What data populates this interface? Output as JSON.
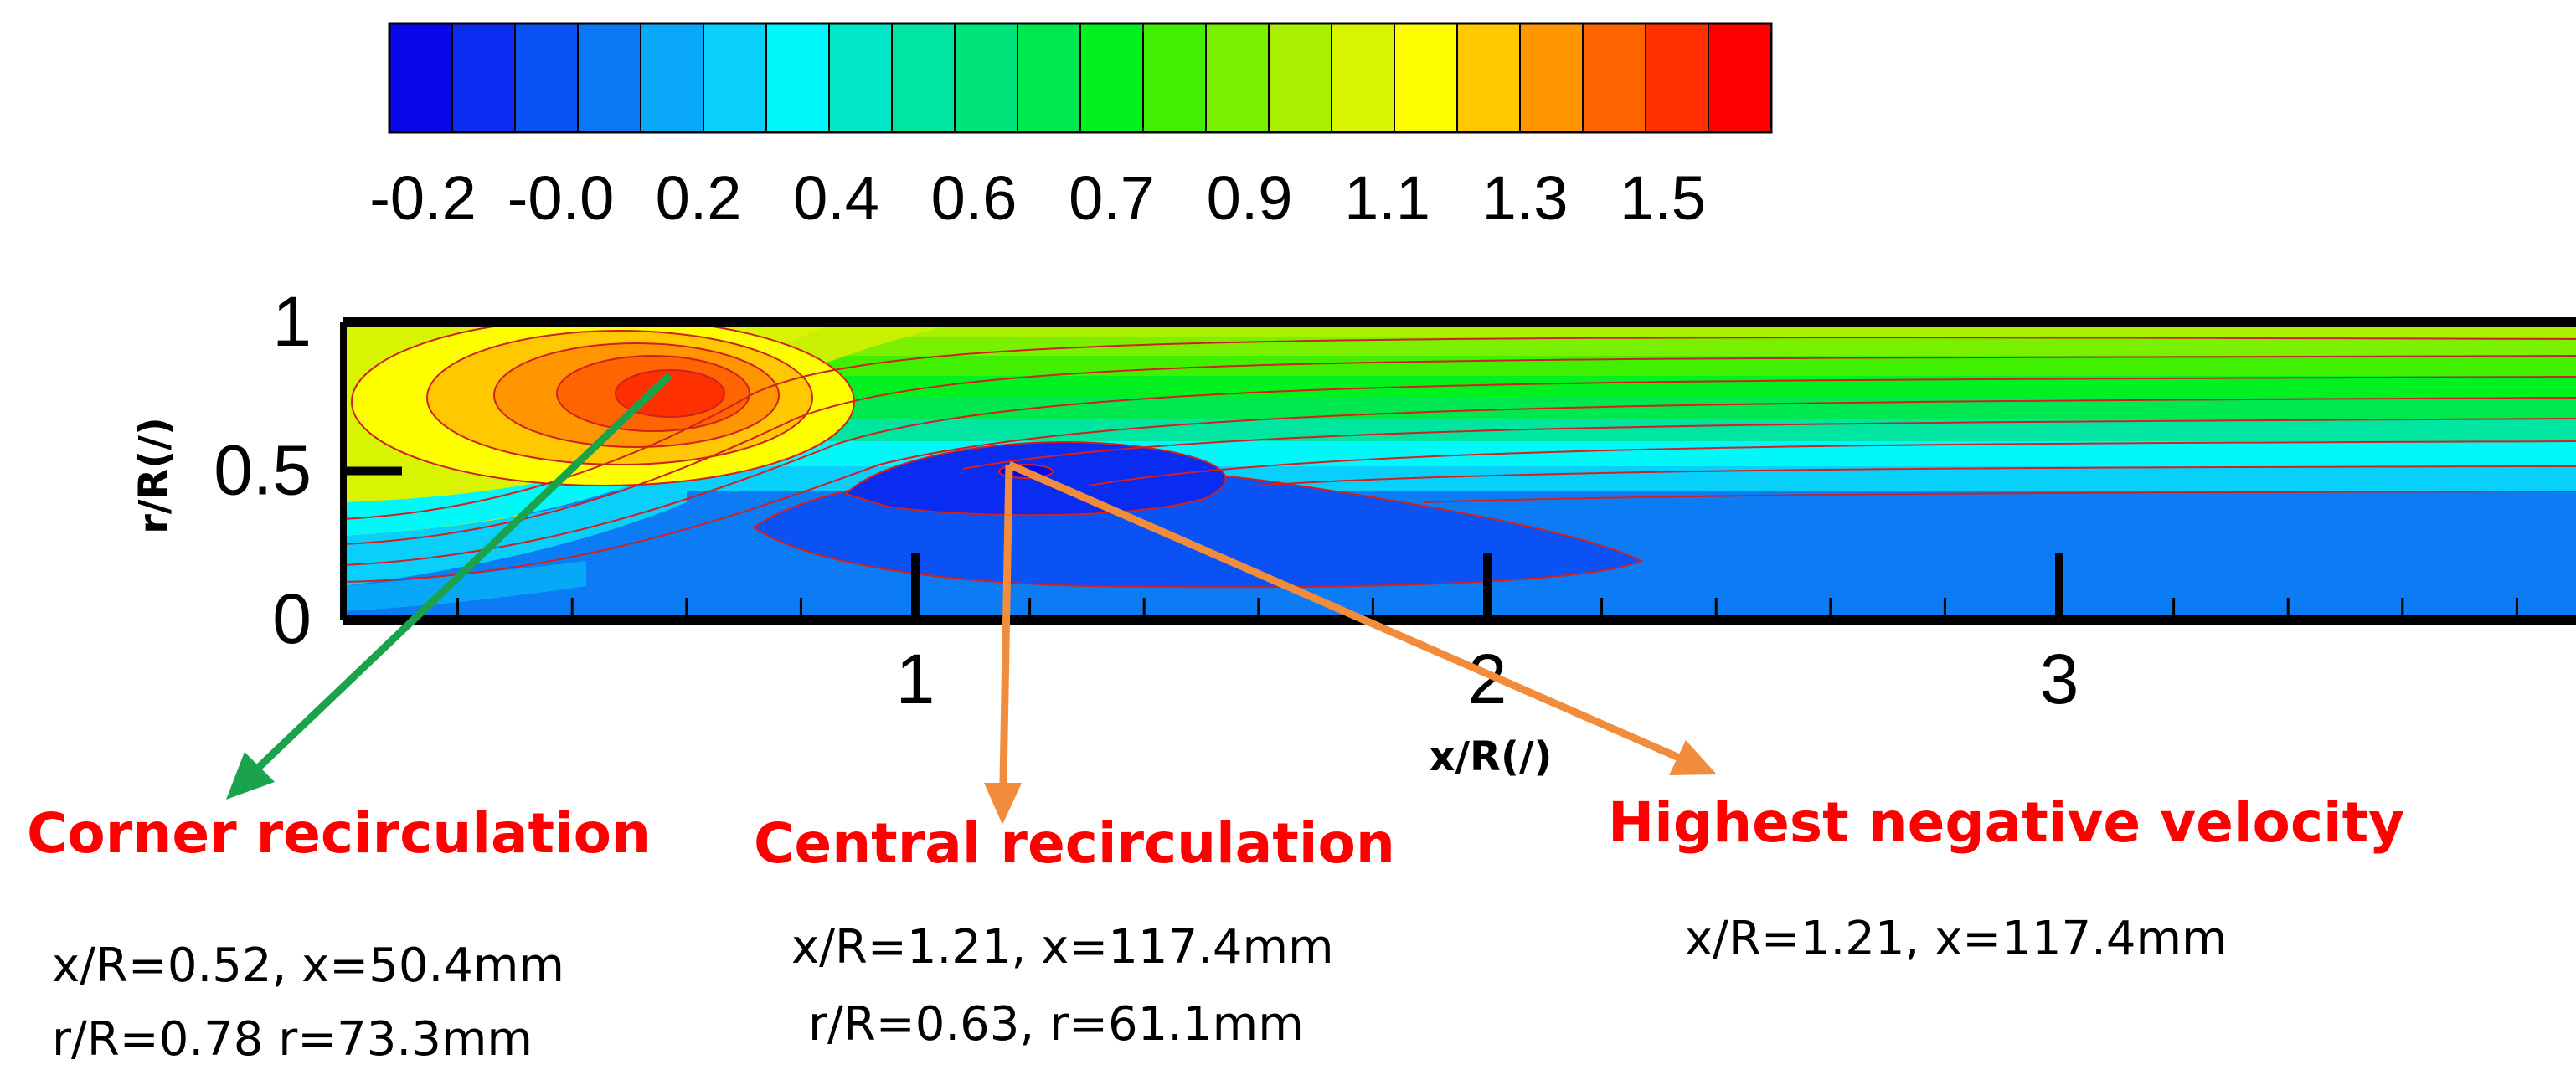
{
  "chart_data": {
    "type": "heatmap",
    "subtype": "filled-contour",
    "title": "",
    "xlabel": "x/R(/)",
    "ylabel": "r/R(/)",
    "xlim": [
      0,
      3.95
    ],
    "ylim": [
      0,
      1
    ],
    "x_ticks": [
      {
        "value": 1,
        "label": "1"
      },
      {
        "value": 2,
        "label": "2"
      },
      {
        "value": 3,
        "label": "3"
      }
    ],
    "y_ticks": [
      {
        "value": 0,
        "label": "0"
      },
      {
        "value": 0.5,
        "label": "0.5"
      },
      {
        "value": 1,
        "label": "1"
      }
    ],
    "colorbar": {
      "min": -0.3,
      "max": 1.65,
      "levels": 20,
      "colors": [
        "#0808e8",
        "#0a2cf0",
        "#0b52f4",
        "#0c78f6",
        "#0aa8f8",
        "#08d0fa",
        "#00f8f8",
        "#00e8c8",
        "#00e6a0",
        "#00e47c",
        "#00e850",
        "#00f020",
        "#40f000",
        "#78f000",
        "#a8f000",
        "#d8f400",
        "#ffff00",
        "#ffc800",
        "#ff9600",
        "#ff6400",
        "#ff3000",
        "#ff0000"
      ],
      "tick_labels": [
        "-0.2",
        "-0.0",
        "0.2",
        "0.4",
        "0.6",
        "0.7",
        "0.9",
        "1.1",
        "1.3",
        "1.5"
      ],
      "tick_values": [
        -0.2,
        0.0,
        0.2,
        0.4,
        0.6,
        0.7,
        0.9,
        1.1,
        1.3,
        1.5
      ]
    },
    "regions": [
      {
        "name": "Corner recirculation",
        "x_over_R": 0.52,
        "r_over_R": 0.78,
        "peak_value": 1.55
      },
      {
        "name": "Central recirculation",
        "x_over_R": 1.21,
        "r_over_R": 0.63,
        "peak_value": -0.2
      },
      {
        "name": "Highest negative velocity",
        "x_over_R": 1.21,
        "r_over_R": 0.5
      }
    ],
    "annotations": [
      {
        "title": "Corner recirculation",
        "lines": [
          "x/R=0.52, x=50.4mm",
          "r/R=0.78  r=73.3mm"
        ],
        "arrow_color": "#1aa34a"
      },
      {
        "title": "Central recirculation",
        "lines": [
          "x/R=1.21, x=117.4mm",
          "r/R=0.63, r=61.1mm"
        ],
        "arrow_color": "#f08c3c"
      },
      {
        "title": "Highest negative velocity",
        "lines": [
          "x/R=1.21, x=117.4mm"
        ],
        "arrow_color": "#f08c3c"
      }
    ]
  }
}
